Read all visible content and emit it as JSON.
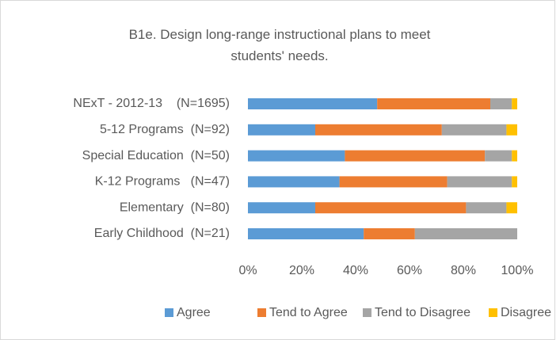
{
  "chart_data": {
    "type": "stacked_bar_horizontal",
    "title": "B1e. Design long-range instructional plans to meet students' needs.",
    "categories": [
      "NExT - 2012-13    (N=1695)",
      "5-12 Programs  (N=92)",
      "Special Education  (N=50)",
      "K-12 Programs   (N=47)",
      "Elementary  (N=80)",
      "Early Childhood  (N=21)"
    ],
    "series": [
      {
        "name": "Agree",
        "color": "#5b9bd5",
        "values": [
          48,
          25,
          36,
          34,
          25,
          43
        ]
      },
      {
        "name": "Tend to Agree",
        "color": "#ed7d31",
        "values": [
          42,
          47,
          52,
          40,
          56,
          19
        ]
      },
      {
        "name": "Tend to Disagree",
        "color": "#a5a5a5",
        "values": [
          8,
          24,
          10,
          24,
          15,
          38
        ]
      },
      {
        "name": "Disagree",
        "color": "#ffc000",
        "values": [
          2,
          4,
          2,
          2,
          4,
          0
        ]
      }
    ],
    "xlim": [
      0,
      100
    ],
    "xticks": [
      {
        "value": 0,
        "label": "0%"
      },
      {
        "value": 20,
        "label": "20%"
      },
      {
        "value": 40,
        "label": "40%"
      },
      {
        "value": 60,
        "label": "60%"
      },
      {
        "value": 80,
        "label": "80%"
      },
      {
        "value": 100,
        "label": "100%"
      }
    ],
    "grid": false,
    "legend": "bottom"
  }
}
